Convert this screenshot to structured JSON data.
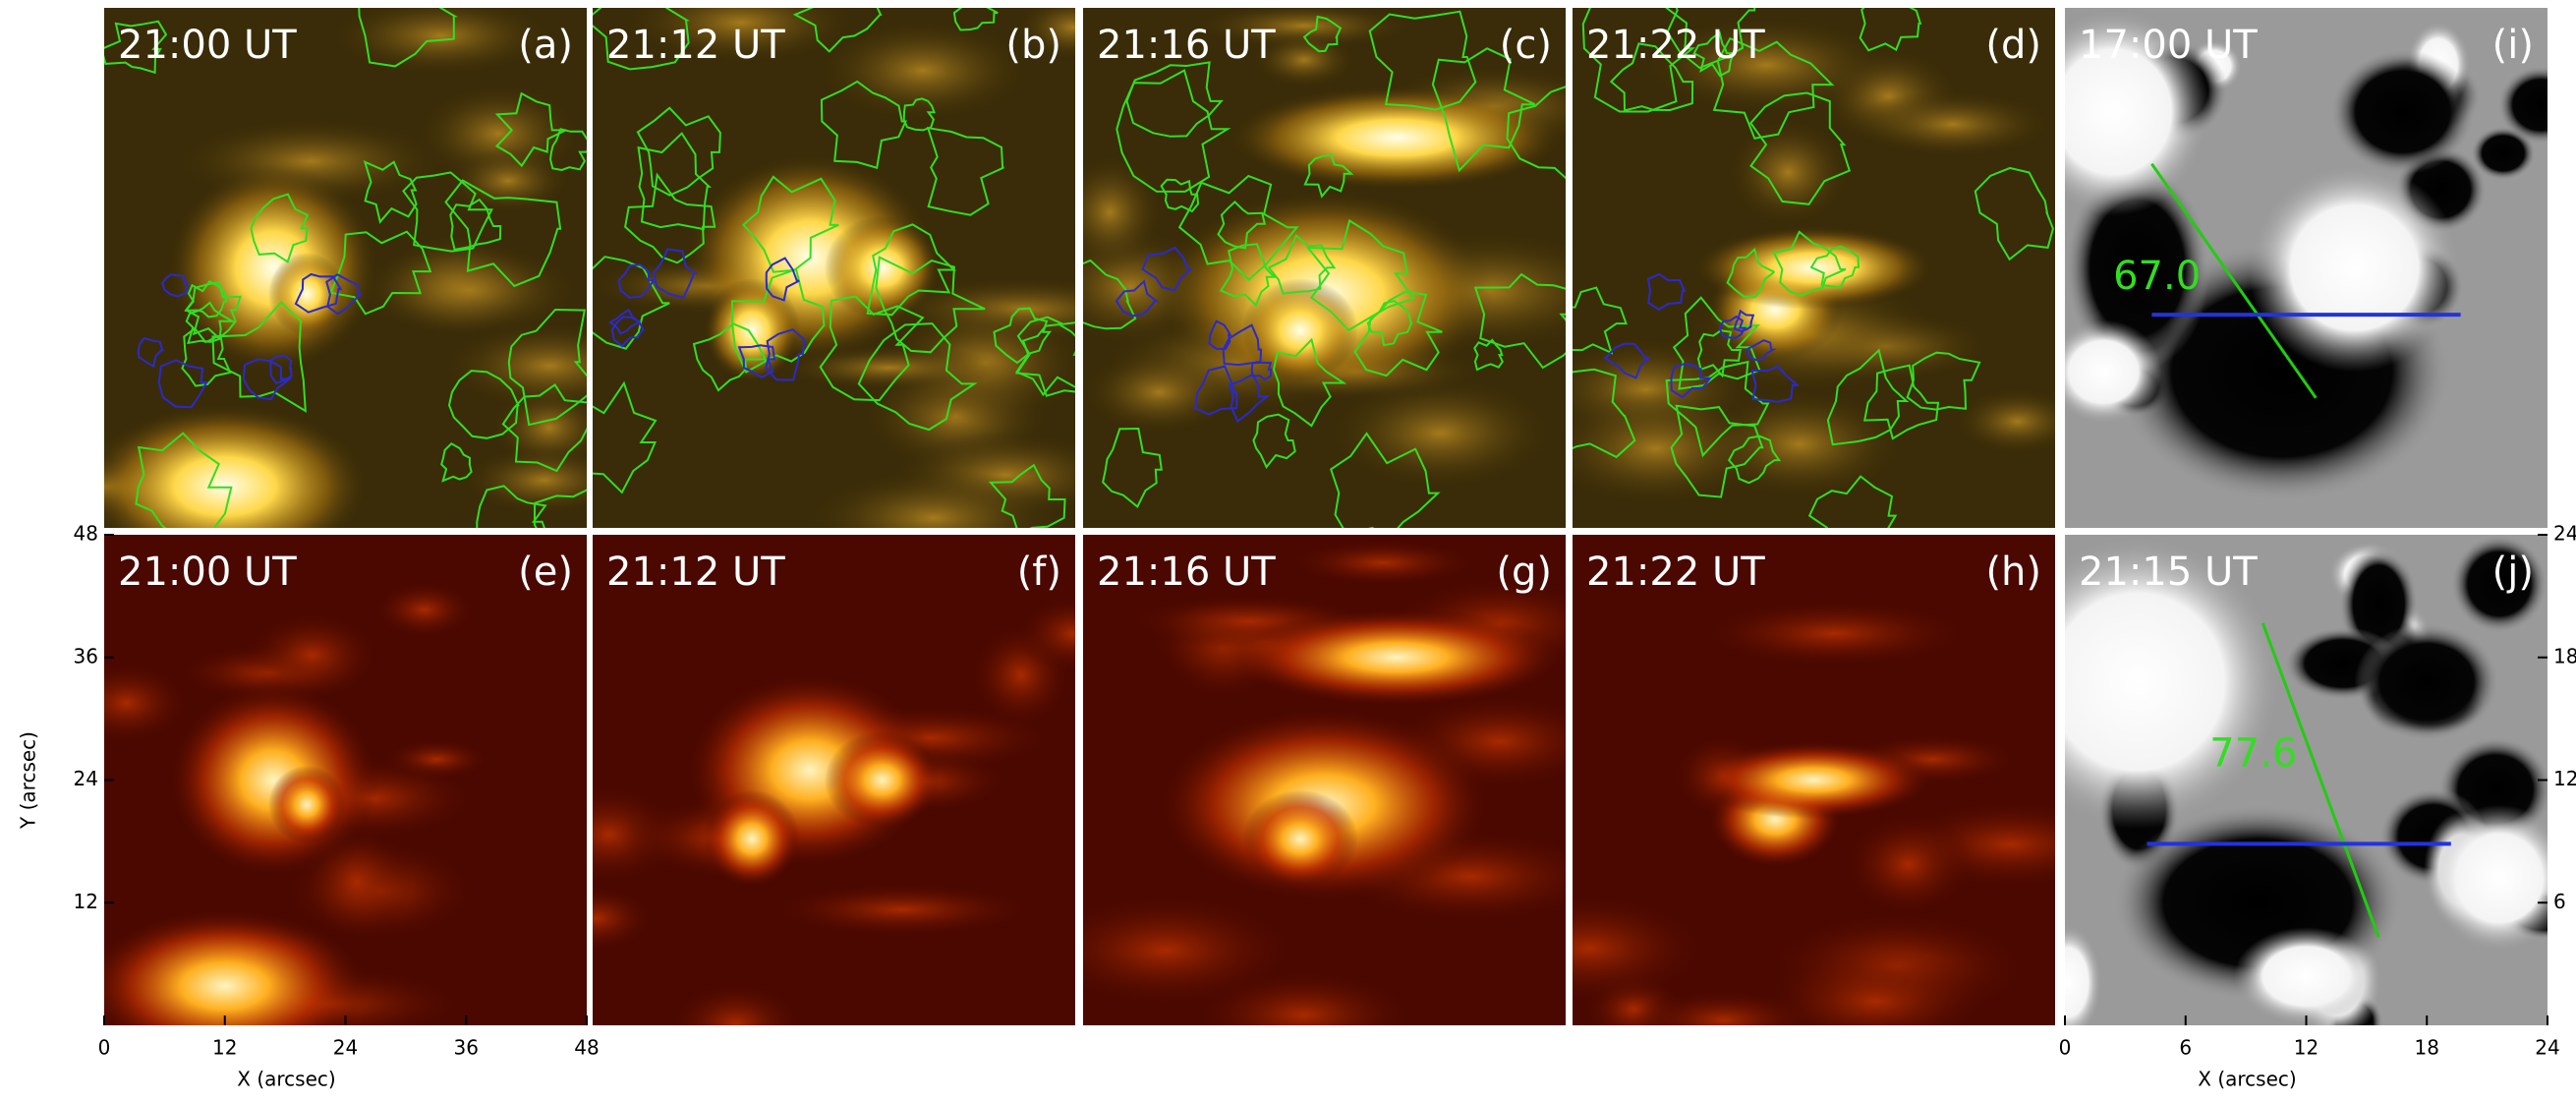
{
  "rows": [
    [
      {
        "time": "21:00 UT",
        "label": "(a)"
      },
      {
        "time": "21:12 UT",
        "label": "(b)"
      },
      {
        "time": "21:16 UT",
        "label": "(c)"
      },
      {
        "time": "21:22 UT",
        "label": "(d)"
      },
      {
        "time": "17:00 UT",
        "label": "(i)",
        "annotation": "67.0"
      }
    ],
    [
      {
        "time": "21:00 UT",
        "label": "(e)"
      },
      {
        "time": "21:12 UT",
        "label": "(f)"
      },
      {
        "time": "21:16 UT",
        "label": "(g)"
      },
      {
        "time": "21:22 UT",
        "label": "(h)"
      },
      {
        "time": "21:15 UT",
        "label": "(j)",
        "annotation": "77.6"
      }
    ]
  ],
  "left_axes": {
    "xlabel": "X (arcsec)",
    "ylabel": "Y (arcsec)",
    "xlim": [
      0,
      48
    ],
    "xticks": [
      0,
      12,
      24,
      36,
      48
    ],
    "ylim": [
      0,
      48
    ],
    "yticks": [
      12,
      24,
      36,
      48
    ]
  },
  "right_axes": {
    "xlabel": "X (arcsec)",
    "xlim": [
      0,
      24
    ],
    "xticks": [
      0,
      6,
      12,
      18,
      24
    ],
    "ylim": [
      0,
      24
    ],
    "yticks": [
      6,
      12,
      18,
      24
    ]
  }
}
